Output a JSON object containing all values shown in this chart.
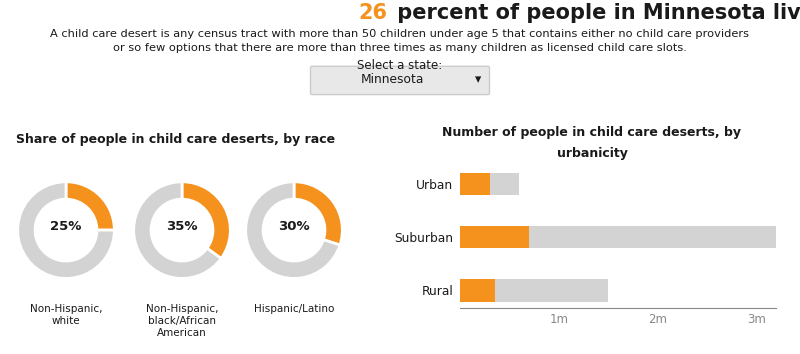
{
  "title_number": "26",
  "title_rest": " percent of people in Minnesota live in a child care desert.",
  "subtitle_line1": "A child care desert is any census tract with more than 50 children under age 5 that contains either no child care providers",
  "subtitle_line2": "or so few options that there are more than three times as many children as licensed child care slots.",
  "dropdown_label": "Select a state:",
  "dropdown_value": "Minnesota",
  "donut_title": "Share of people in child care deserts, by race",
  "donut_labels": [
    "Non-Hispanic,\nwhite",
    "Non-Hispanic,\nblack/African\nAmerican",
    "Hispanic/Latino"
  ],
  "donut_pcts": [
    25,
    35,
    30
  ],
  "bar_title_line1": "Number of people in child care deserts, by",
  "bar_title_line2": "urbanicity",
  "bar_categories": [
    "Urban",
    "Suburban",
    "Rural"
  ],
  "bar_desert": [
    300000,
    700000,
    350000
  ],
  "bar_total": [
    600000,
    3200000,
    1500000
  ],
  "bar_xlim": [
    0,
    3200000
  ],
  "bar_xticks": [
    0,
    1000000,
    2000000,
    3000000
  ],
  "bar_xticklabels": [
    "",
    "1m",
    "2m",
    "3m"
  ],
  "orange": "#F5921E",
  "light_gray": "#D3D3D3",
  "dark_gray": "#888888",
  "text_dark": "#1a1a1a",
  "title_number_color": "#F5921E",
  "background": "#ffffff",
  "dropdown_bg": "#e8e8e8",
  "dropdown_border": "#cccccc"
}
